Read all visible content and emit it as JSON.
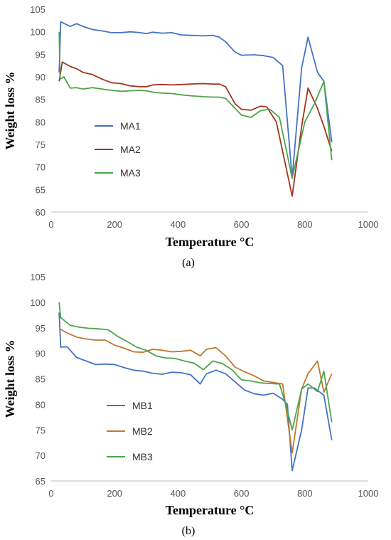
{
  "chart_data": [
    {
      "type": "line",
      "panel_label": "(a)",
      "xlabel": "Temperature °C",
      "ylabel": "Weight loss %",
      "xlim": [
        0,
        1000
      ],
      "ylim": [
        60,
        105
      ],
      "x_ticks": [
        "0",
        "200",
        "400",
        "600",
        "800",
        "1000"
      ],
      "y_ticks": [
        "60",
        "65",
        "70",
        "75",
        "80",
        "85",
        "90",
        "95",
        "100",
        "105"
      ],
      "grid": false,
      "legend_position": "left-middle",
      "series": [
        {
          "name": "MA1",
          "color": "#4472C4",
          "x": [
            25,
            30,
            60,
            80,
            100,
            130,
            160,
            190,
            220,
            250,
            280,
            300,
            320,
            350,
            380,
            410,
            440,
            480,
            510,
            530,
            550,
            580,
            600,
            640,
            670,
            700,
            730,
            760,
            790,
            810,
            840,
            860,
            885
          ],
          "y": [
            91,
            102.2,
            101.2,
            101.8,
            101.2,
            100.5,
            100.2,
            99.8,
            99.8,
            100,
            99.8,
            99.6,
            99.9,
            99.7,
            99.8,
            99.3,
            99.2,
            99.1,
            99.2,
            98.8,
            97.8,
            95.5,
            94.8,
            94.9,
            94.7,
            94.3,
            92.5,
            67.5,
            92,
            98.8,
            91,
            89,
            75.5
          ]
        },
        {
          "name": "MA2",
          "color": "#A5341D",
          "x": [
            25,
            35,
            60,
            80,
            100,
            130,
            160,
            190,
            220,
            250,
            280,
            300,
            320,
            350,
            380,
            410,
            440,
            480,
            510,
            530,
            550,
            580,
            600,
            630,
            660,
            680,
            710,
            760,
            790,
            810,
            840,
            860,
            885
          ],
          "y": [
            89,
            93.3,
            92.3,
            91.8,
            91,
            90.5,
            89.5,
            88.7,
            88.5,
            88,
            87.8,
            87.8,
            88.2,
            88.3,
            88.2,
            88.3,
            88.4,
            88.5,
            88.4,
            88.4,
            87.8,
            84,
            82.8,
            82.6,
            83.5,
            83.3,
            80,
            63.5,
            79,
            87.5,
            83,
            79,
            73.5
          ]
        },
        {
          "name": "MA3",
          "color": "#4EA44E",
          "x": [
            25,
            28,
            40,
            60,
            80,
            100,
            130,
            160,
            190,
            220,
            250,
            280,
            300,
            320,
            350,
            380,
            410,
            440,
            480,
            510,
            530,
            550,
            580,
            600,
            630,
            660,
            690,
            720,
            760,
            800,
            830,
            860,
            885
          ],
          "y": [
            100,
            89.5,
            90,
            87.5,
            87.6,
            87.3,
            87.6,
            87.3,
            87,
            86.8,
            86.9,
            87,
            86.9,
            86.6,
            86.4,
            86.3,
            86,
            85.8,
            85.6,
            85.5,
            85.5,
            85.2,
            83,
            81.5,
            81,
            82.5,
            82.8,
            81,
            67.5,
            80,
            84,
            89,
            71.5
          ]
        }
      ]
    },
    {
      "type": "line",
      "panel_label": "(b)",
      "xlabel": "Temperature °C",
      "ylabel": "Weight loss %",
      "xlim": [
        0,
        1000
      ],
      "ylim": [
        65,
        105
      ],
      "x_ticks": [
        "0",
        "200",
        "400",
        "600",
        "800",
        "1000"
      ],
      "y_ticks": [
        "65",
        "70",
        "75",
        "80",
        "85",
        "90",
        "95",
        "100",
        "105"
      ],
      "grid": false,
      "legend_position": "left-bottom",
      "series": [
        {
          "name": "MB1",
          "color": "#4472C4",
          "x": [
            25,
            30,
            50,
            80,
            110,
            140,
            170,
            200,
            230,
            260,
            290,
            320,
            350,
            380,
            410,
            440,
            470,
            490,
            520,
            550,
            580,
            610,
            640,
            670,
            700,
            730,
            745,
            760,
            790,
            810,
            830,
            860,
            885
          ],
          "y": [
            98,
            91.2,
            91.3,
            89.2,
            88.5,
            87.8,
            87.9,
            87.8,
            87.2,
            86.7,
            86.5,
            86.1,
            85.9,
            86.3,
            86.2,
            85.8,
            84,
            86,
            86.7,
            86,
            84.4,
            82.8,
            82.1,
            81.8,
            82.2,
            81,
            80,
            67,
            75,
            83.2,
            83.2,
            81.8,
            73
          ]
        },
        {
          "name": "MB2",
          "color": "#C0782E",
          "x": [
            25,
            30,
            50,
            80,
            110,
            140,
            170,
            200,
            230,
            260,
            290,
            320,
            350,
            380,
            410,
            440,
            470,
            490,
            520,
            550,
            580,
            610,
            640,
            670,
            700,
            730,
            760,
            790,
            810,
            840,
            860,
            885
          ],
          "y": [
            94.5,
            94.7,
            94,
            93.2,
            92.8,
            92.6,
            92.6,
            91.6,
            91,
            90.3,
            90.2,
            90.8,
            90.6,
            90.3,
            90.4,
            90.6,
            89.5,
            90.8,
            91.1,
            89.5,
            87.3,
            86.4,
            85.6,
            84.6,
            84.3,
            84,
            70.5,
            83,
            86,
            88.5,
            82.4,
            86
          ]
        },
        {
          "name": "MB3",
          "color": "#4EA44E",
          "x": [
            25,
            30,
            60,
            90,
            120,
            150,
            180,
            210,
            240,
            270,
            300,
            330,
            360,
            390,
            420,
            450,
            480,
            510,
            540,
            570,
            600,
            630,
            660,
            690,
            720,
            740,
            760,
            790,
            810,
            840,
            860,
            885
          ],
          "y": [
            100,
            97,
            95.5,
            95.1,
            94.9,
            94.8,
            94.6,
            93.3,
            92.3,
            91.2,
            90.6,
            89.5,
            89.1,
            89,
            88.5,
            88.1,
            86.8,
            88.5,
            88,
            86.8,
            84.8,
            84.6,
            84.2,
            84.1,
            84,
            80,
            75,
            83,
            84,
            82.5,
            86.5,
            76.5
          ]
        }
      ]
    }
  ]
}
